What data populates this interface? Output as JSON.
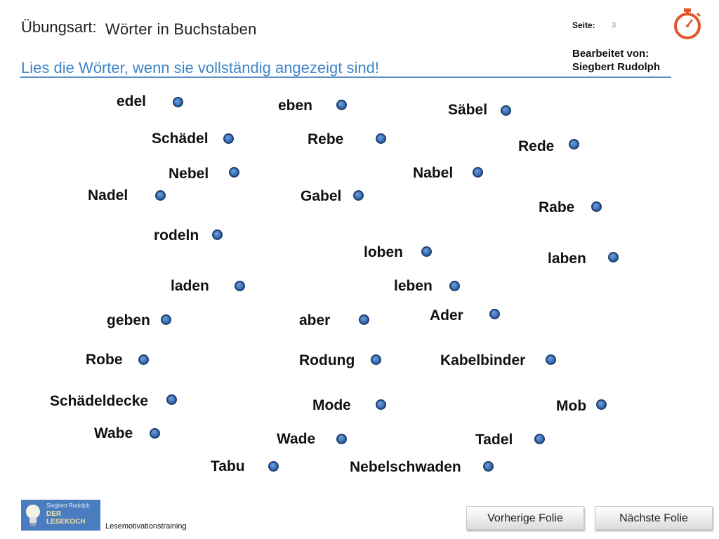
{
  "header": {
    "title_label": "Übungsart:",
    "title_value": "Wörter in Buchstaben",
    "instruction": "Lies die Wörter, wenn sie vollständig angezeigt sind!",
    "page_label": "Seite:",
    "page_number": "3",
    "editor_label": "Bearbeitet von:",
    "editor_name": "Siegbert Rudolph",
    "timer_icon": "stopwatch-icon"
  },
  "words": [
    "edel",
    "eben",
    "Säbel",
    "Schädel",
    "Rebe",
    "Rede",
    "Nebel",
    "Nabel",
    "Nadel",
    "Gabel",
    "Rabe",
    "rodeln",
    "loben",
    "laben",
    "laden",
    "leben",
    "Ader",
    "geben",
    "aber",
    "Robe",
    "Rodung",
    "Kabelbinder",
    "Schädeldecke",
    "Mode",
    "Mob",
    "Wabe",
    "Wade",
    "Tadel",
    "Tabu",
    "Nebelschwaden"
  ],
  "footer": {
    "logo_name": "Siegbert Rudolph",
    "logo_brand": "DER LESEKOCH",
    "tagline": "Lesemotivationstraining",
    "prev_label": "Vorherige Folie",
    "next_label": "Nächste Folie"
  },
  "colors": {
    "accent": "#3f86c7",
    "dot": "#2f65ad",
    "timer": "#e0562a"
  }
}
